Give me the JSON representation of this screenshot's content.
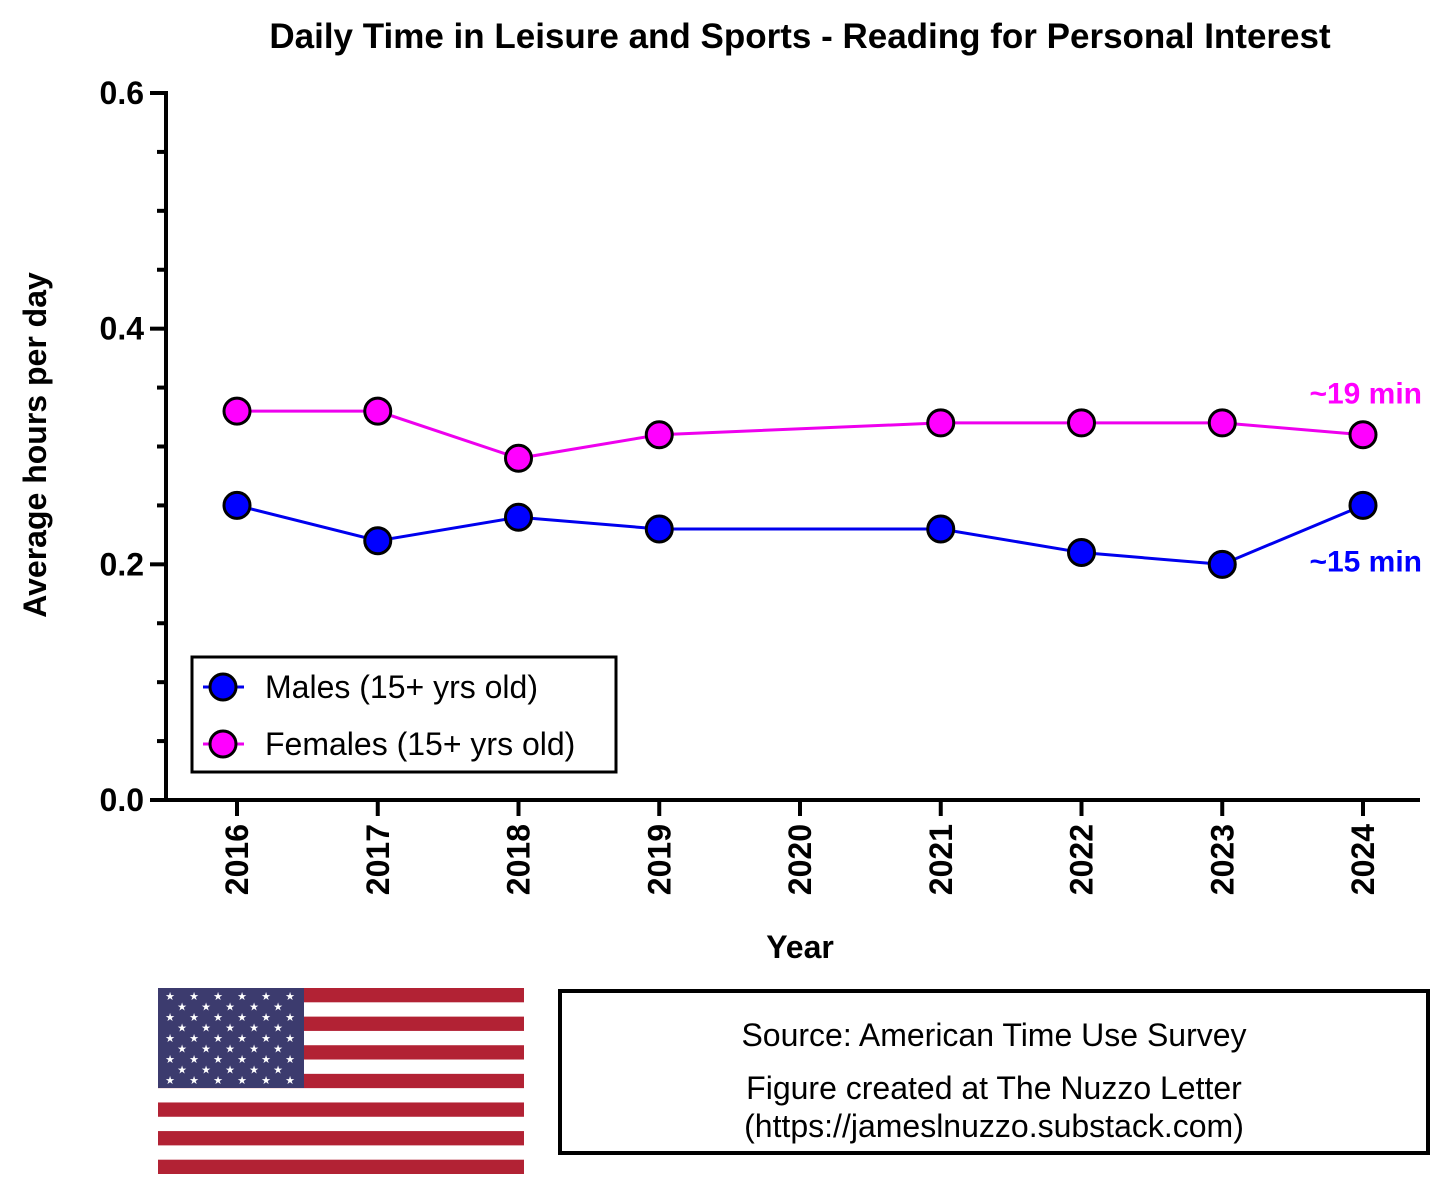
{
  "chart_data": {
    "type": "line",
    "title": "Daily Time in Leisure and Sports - Reading for Personal Interest",
    "xlabel": "Year",
    "ylabel": "Average hours per day",
    "ylim": [
      0,
      0.6
    ],
    "yticks": [
      "0.0",
      "0.2",
      "0.4",
      "0.6"
    ],
    "categories": [
      "2016",
      "2017",
      "2018",
      "2019",
      "2020",
      "2021",
      "2022",
      "2023",
      "2024"
    ],
    "series": [
      {
        "name": "Males (15+ yrs old)",
        "color": "#0000ee",
        "marker_color": "#0000ff",
        "values": [
          0.25,
          0.22,
          0.24,
          0.23,
          null,
          0.23,
          0.21,
          0.2,
          0.25
        ],
        "end_label": "~15 min"
      },
      {
        "name": "Females (15+ yrs old)",
        "color": "#ee00ee",
        "marker_color": "#ff00ff",
        "values": [
          0.33,
          0.33,
          0.29,
          0.31,
          null,
          0.32,
          0.32,
          0.32,
          0.31
        ],
        "end_label": "~19 min"
      }
    ],
    "legend_position": "bottom-left",
    "grid": false
  },
  "footer": {
    "source": "Source: American Time Use Survey",
    "credit_line1": "Figure created at The Nuzzo Letter",
    "credit_line2": "(https://jameslnuzzo.substack.com)",
    "flag_icon": "us-flag-icon"
  }
}
